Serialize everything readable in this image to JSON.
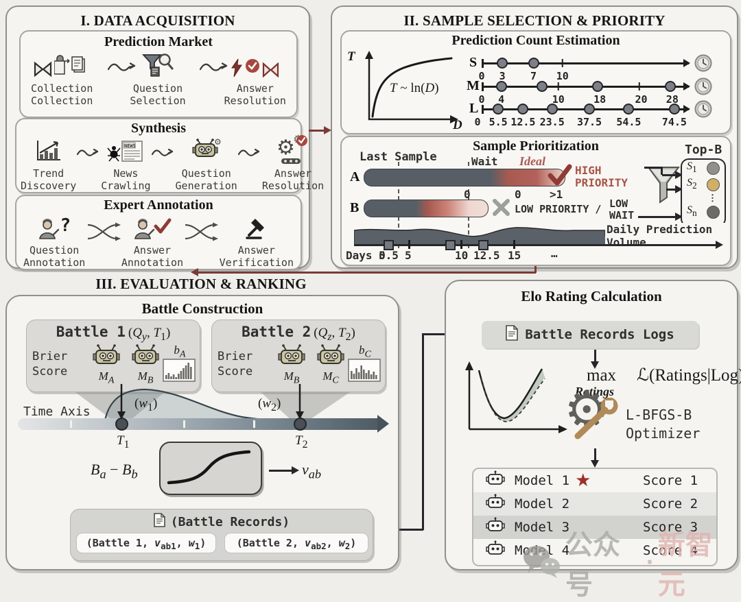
{
  "sec1": {
    "title": "I. DATA ACQUISITION",
    "market": {
      "title": "Prediction Market",
      "steps": [
        "Collection\nCollection",
        "Question\nSelection",
        "Answer\nResolution"
      ]
    },
    "synthesis": {
      "title": "Synthesis",
      "steps": [
        "Trend\nDiscovery",
        "News\nCrawling",
        "Question\nGeneration",
        "Answer\nResolution"
      ]
    },
    "expert": {
      "title": "Expert Annotation",
      "steps": [
        "Question\nAnnotation",
        "Answer\nAnnotation",
        "Answer\nVerification"
      ]
    }
  },
  "sec2": {
    "title": "II. SAMPLE SELECTION & PRIORITY",
    "pce": {
      "title": "Prediction Count Estimation",
      "plot": {
        "y": "T",
        "x": "D",
        "formula": "<i>T</i> ~ ln(<i>D</i>)"
      },
      "rows": [
        {
          "letter": "S",
          "labels": [
            "0",
            "3",
            "7",
            "10"
          ]
        },
        {
          "letter": "M",
          "labels": [
            "0",
            "4",
            "10",
            "18",
            "20",
            "28"
          ]
        },
        {
          "letter": "L",
          "labels": [
            "0",
            "5.5",
            "12.5",
            "23.5",
            "37.5",
            "54.5",
            "74.5"
          ]
        }
      ]
    },
    "sp": {
      "title": "Sample Prioritization",
      "last_sample": "Last Sample",
      "wait": "Wait",
      "ideal": "Ideal",
      "bar_a": "A",
      "bar_b": "B",
      "vals": [
        "0",
        "0",
        ">1"
      ],
      "high": "HIGH\nPRIORITY",
      "low": "LOW PRIORITY /",
      "low_wait": "LOW\nWAIT",
      "topb": "Top-B",
      "slots": [
        "<i>S</i><sub>1</sub>",
        "<i>S</i><sub>2</sub>",
        "⋮",
        "<i>S</i><sub>n</sub>"
      ],
      "slot_colors": [
        "#8f8f8b",
        "#d0af67",
        "",
        "#6b6b67"
      ],
      "timeline": {
        "origin": "Days 0",
        "ticks": [
          "5.5",
          "5",
          "10",
          "12.5",
          "15",
          "…"
        ],
        "volume": "Daily Prediction Volume"
      }
    }
  },
  "sec3": {
    "title": "III. EVALUATION & RANKING",
    "bc": {
      "title": "Battle Construction",
      "battles": [
        {
          "name": "Battle 1",
          "args": "(<i>Q<sub>y</sub></i>, <i>T</i><sub>1</sub>)",
          "brier": "Brier\nScore",
          "m1": "<i>M<sub>A</sub></i>",
          "m2": "<i>M<sub>B</sub></i>",
          "hist": "<i>b<sub>A</sub></i>"
        },
        {
          "name": "Battle 2",
          "args": "(<i>Q<sub>z</sub></i>, <i>T</i><sub>2</sub>)",
          "brier": "Brier\nScore",
          "m1": "<i>M<sub>B</sub></i>",
          "m2": "<i>M<sub>C</sub></i>",
          "hist": "<i>b<sub>C</sub></i>"
        }
      ],
      "time_axis": "Time Axis",
      "w1": "(<i>w</i><sub>1</sub>)",
      "w2": "(<i>w</i><sub>2</sub>)",
      "t1": "<i>T</i><sub>1</sub>",
      "t2": "<i>T</i><sub>2</sub>",
      "formula_left": "<i>B<sub>a</sub></i> − <i>B<sub>b</sub></i>",
      "formula_right": "<i>v<sub>ab</sub></i>",
      "records": {
        "title": "(Battle Records)",
        "pills": [
          "(Battle 1, <i>v</i><sub>ab1</sub>, <i>w</i><sub>1</sub>)",
          "(Battle 2, <i>v</i><sub>ab2</sub>, <i>w</i><sub>2</sub>)"
        ]
      }
    }
  },
  "sec4": {
    "title": "Elo Rating Calculation",
    "logs": "Battle Records Logs",
    "max": "max",
    "ratings": "Ratings",
    "likelihood": "ℒ(Ratings|Log)",
    "optimizer": "L-BFGS-B\nOptimizer",
    "models": [
      {
        "name": "Model 1",
        "score": "Score 1"
      },
      {
        "name": "Model 2",
        "score": "Score 2"
      },
      {
        "name": "Model 3",
        "score": "Score 3"
      },
      {
        "name": "Model 4",
        "score": "Score 4"
      }
    ],
    "watermark": {
      "wechat": "公众号",
      "sep": "·",
      "brand": "新智元"
    }
  }
}
